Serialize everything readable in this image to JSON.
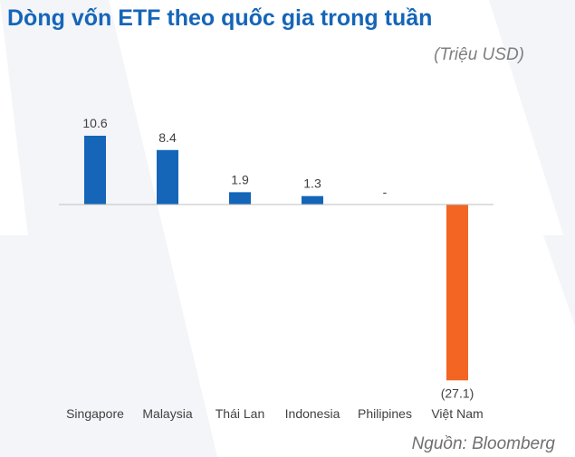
{
  "chart_data": {
    "type": "bar",
    "title": "Dòng vốn ETF theo quốc gia trong tuần",
    "unit": "(Triệu USD)",
    "source": "Nguồn: Bloomberg",
    "categories": [
      "Singapore",
      "Malaysia",
      "Thái Lan",
      "Indonesia",
      "Philipines",
      "Việt Nam"
    ],
    "values": [
      10.6,
      8.4,
      1.9,
      1.3,
      0,
      -27.1
    ],
    "data_labels": [
      "10.6",
      "8.4",
      "1.9",
      "1.3",
      "-",
      "(27.1)"
    ],
    "colors": {
      "positive": "#1565b8",
      "negative": "#f26522"
    },
    "grid": false
  }
}
